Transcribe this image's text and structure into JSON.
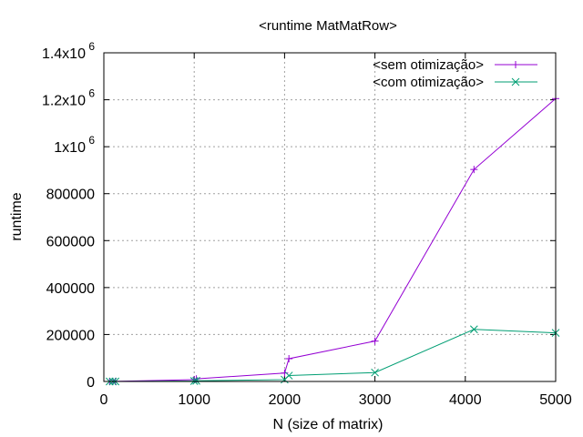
{
  "chart_data": {
    "type": "line",
    "title": "<runtime MatMatRow>",
    "xlabel": "N (size of matrix)",
    "ylabel": "runtime",
    "xlim": [
      0,
      5000
    ],
    "ylim": [
      0,
      1400000
    ],
    "grid": true,
    "legend_position": "top-right",
    "x_ticks": [
      {
        "value": 0,
        "label": "0"
      },
      {
        "value": 1000,
        "label": "1000"
      },
      {
        "value": 2000,
        "label": "2000"
      },
      {
        "value": 3000,
        "label": "3000"
      },
      {
        "value": 4000,
        "label": "4000"
      },
      {
        "value": 5000,
        "label": "5000"
      }
    ],
    "y_ticks": [
      {
        "value": 0,
        "label": "0"
      },
      {
        "value": 200000,
        "label": "200000"
      },
      {
        "value": 400000,
        "label": "400000"
      },
      {
        "value": 600000,
        "label": "600000"
      },
      {
        "value": 800000,
        "label": "800000"
      },
      {
        "value": 1000000,
        "label": "1x10",
        "exp": "6"
      },
      {
        "value": 1200000,
        "label": "1.2x10",
        "exp": "6"
      },
      {
        "value": 1400000,
        "label": "1.4x10",
        "exp": "6"
      }
    ],
    "series": [
      {
        "name": "<sem otimização>",
        "color": "#9400d3",
        "marker": "plus",
        "points": [
          [
            64,
            0
          ],
          [
            100,
            100
          ],
          [
            128,
            300
          ],
          [
            1000,
            8000
          ],
          [
            1024,
            11000
          ],
          [
            2000,
            36000
          ],
          [
            2048,
            97000
          ],
          [
            3000,
            172000
          ],
          [
            4096,
            903000
          ],
          [
            5000,
            1205000
          ]
        ]
      },
      {
        "name": "<com otimização>",
        "color": "#009e73",
        "marker": "cross",
        "points": [
          [
            64,
            0
          ],
          [
            100,
            50
          ],
          [
            128,
            150
          ],
          [
            1000,
            2000
          ],
          [
            1024,
            3000
          ],
          [
            2000,
            8000
          ],
          [
            2048,
            25000
          ],
          [
            3000,
            38000
          ],
          [
            4096,
            222000
          ],
          [
            5000,
            207000
          ]
        ]
      }
    ]
  }
}
